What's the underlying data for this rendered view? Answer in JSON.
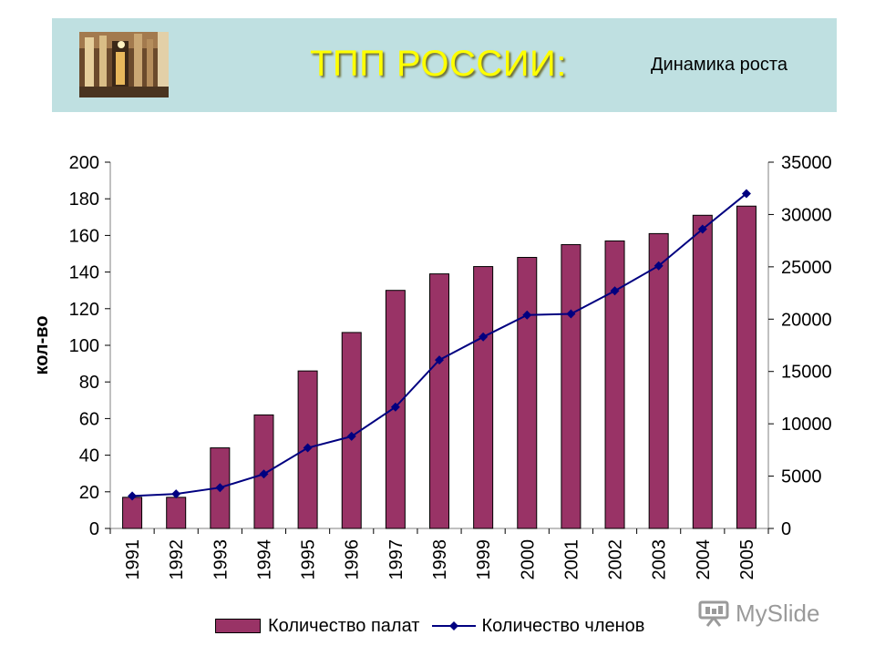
{
  "header": {
    "title": "ТПП РОССИИ:",
    "subtitle": "Динамика роста",
    "photo_icon": "building-photo"
  },
  "watermark": {
    "text": "MySlide",
    "icon": "projector-icon"
  },
  "colors": {
    "banner": "#bfe0e1",
    "title": "#ffff00",
    "bars": "#993366",
    "line": "#000080",
    "watermark": "#9a9a9a"
  },
  "chart_data": {
    "type": "bar",
    "categories": [
      "1991",
      "1992",
      "1993",
      "1994",
      "1995",
      "1996",
      "1997",
      "1998",
      "1999",
      "2000",
      "2001",
      "2002",
      "2003",
      "2004",
      "2005"
    ],
    "series": [
      {
        "name": "Количество палат",
        "type": "bar",
        "axis": "left",
        "values": [
          17,
          17,
          44,
          62,
          86,
          107,
          130,
          139,
          143,
          148,
          155,
          157,
          161,
          171,
          176
        ]
      },
      {
        "name": "Количество  членов",
        "type": "line",
        "axis": "right",
        "values": [
          3100,
          3300,
          3900,
          5200,
          7700,
          8800,
          11600,
          16100,
          18300,
          20400,
          20500,
          22700,
          25100,
          28600,
          32000
        ]
      }
    ],
    "ylabel": "кол-во",
    "xlabel": "",
    "ylim": [
      0,
      200
    ],
    "yticks": [
      "0",
      "20",
      "40",
      "60",
      "80",
      "100",
      "120",
      "140",
      "160",
      "180",
      "200"
    ],
    "y2lim": [
      0,
      35000
    ],
    "y2ticks": [
      "0",
      "5000",
      "10000",
      "15000",
      "20000",
      "25000",
      "30000",
      "35000"
    ],
    "grid": false,
    "legend_position": "bottom"
  }
}
